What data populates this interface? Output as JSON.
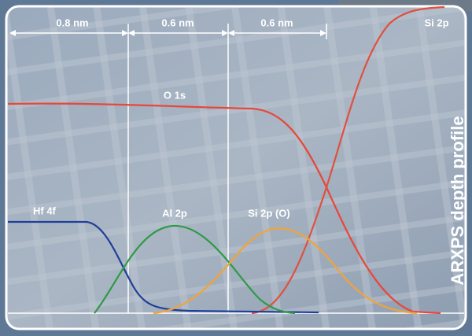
{
  "dimensions": [
    {
      "label": "0.8 nm"
    },
    {
      "label": "0.6 nm"
    },
    {
      "label": "0.6 nm"
    }
  ],
  "curves": [
    {
      "label": "O 1s"
    },
    {
      "label": "Si 2p"
    },
    {
      "label": "Hf 4f"
    },
    {
      "label": "Al 2p"
    },
    {
      "label": "Si 2p (O)"
    }
  ],
  "side_title": "ARXPS depth profile"
}
